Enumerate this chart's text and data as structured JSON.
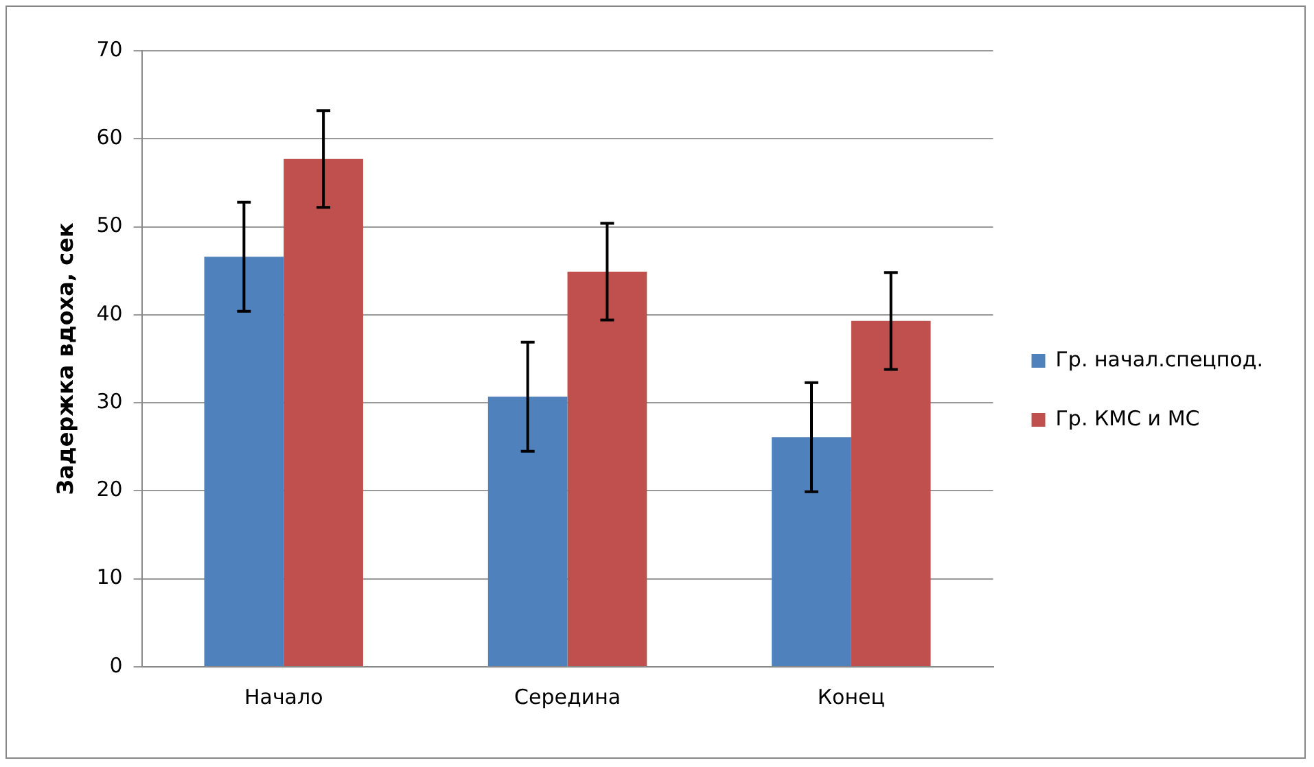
{
  "chart_data": {
    "type": "bar",
    "ylabel": "Задержка вдоха, сек",
    "categories": [
      "Начало",
      "Середина",
      "Конец"
    ],
    "series": [
      {
        "name": "Гр. начал.спецпод.",
        "color": "#4f81bd",
        "values": [
          46.6,
          30.7,
          26.1
        ],
        "errors": [
          6.2,
          6.2,
          6.2
        ]
      },
      {
        "name": "Гр. КМС и МС",
        "color": "#c0504d",
        "values": [
          57.7,
          44.9,
          39.3
        ],
        "errors": [
          5.5,
          5.5,
          5.5
        ]
      }
    ],
    "ylim": [
      0,
      70
    ],
    "yticks": [
      0,
      10,
      20,
      30,
      40,
      50,
      60,
      70
    ],
    "grid": "y",
    "legend": "right"
  }
}
